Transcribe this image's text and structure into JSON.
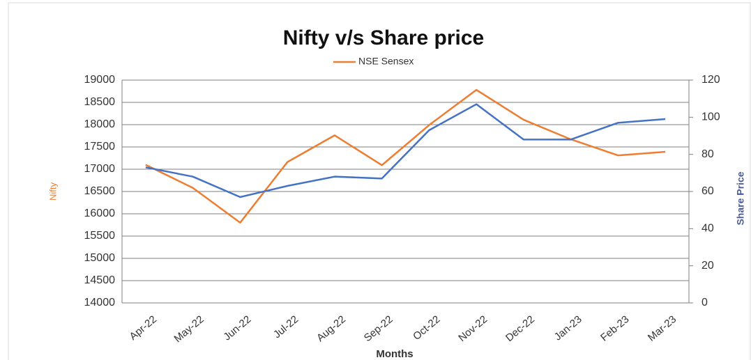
{
  "chart_data": {
    "type": "line",
    "title": "Nifty v/s Share price",
    "x_label": "Months",
    "y_label": "Nifty",
    "y2_label": "Share Price",
    "categories": [
      "Apr-22",
      "May-22",
      "Jun-22",
      "Jul-22",
      "Aug-22",
      "Sep-22",
      "Oct-22",
      "Nov-22",
      "Dec-22",
      "Jan-23",
      "Feb-23",
      "Mar-23"
    ],
    "series": [
      {
        "name": "NSE Sensex",
        "color": "#ed7d31",
        "values": [
          17100,
          16580,
          15800,
          17160,
          17760,
          17090,
          17990,
          18780,
          18110,
          17670,
          17310,
          17390
        ]
      },
      {
        "color": "#4472c4",
        "axis": "y2",
        "values": [
          73,
          68,
          57,
          63,
          68,
          67,
          93,
          107,
          88,
          88,
          97,
          99
        ]
      }
    ],
    "ylim": [
      14000,
      19000
    ],
    "yticks": [
      14000,
      14500,
      15000,
      15500,
      16000,
      16500,
      17000,
      17500,
      18000,
      18500,
      19000
    ],
    "y2lim": [
      0,
      120
    ],
    "y2ticks": [
      0,
      20,
      40,
      60,
      80,
      100,
      120
    ],
    "grid": true,
    "legend": "top"
  }
}
